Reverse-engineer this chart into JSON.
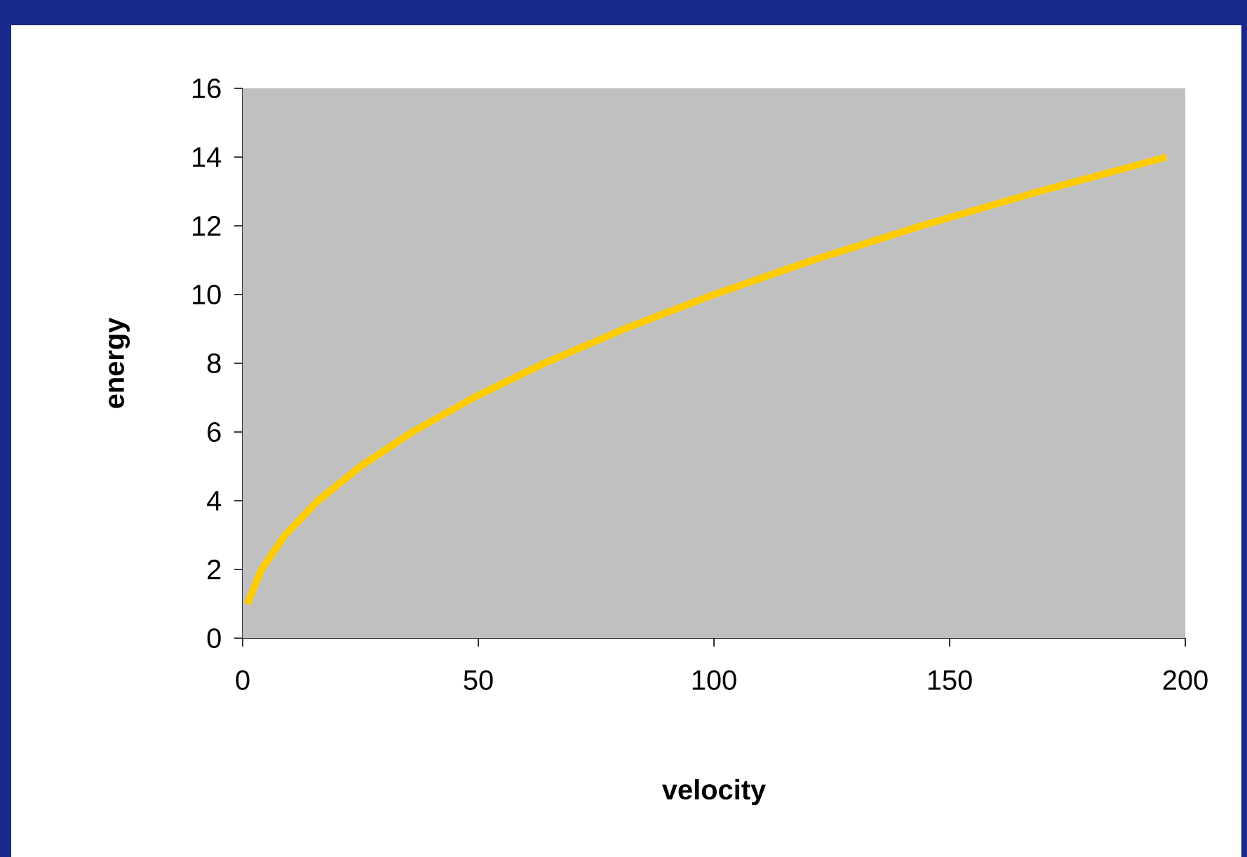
{
  "chart_data": {
    "type": "line",
    "xlabel": "velocity",
    "ylabel": "energy",
    "x": [
      1,
      4,
      9,
      16,
      25,
      36,
      49,
      64,
      81,
      100,
      121,
      144,
      169,
      196
    ],
    "series": [
      {
        "color": "#ffcc00",
        "values": [
          1,
          2,
          3,
          4,
          5,
          6,
          7,
          8,
          9,
          10,
          11,
          12,
          13,
          14
        ]
      }
    ],
    "xlim": [
      0,
      200
    ],
    "ylim": [
      0,
      16
    ],
    "xticks": [
      0,
      50,
      100,
      150,
      200
    ],
    "yticks": [
      0,
      2,
      4,
      6,
      8,
      10,
      12,
      14,
      16
    ],
    "grid": false,
    "marker": "none",
    "line_style": "solid"
  }
}
